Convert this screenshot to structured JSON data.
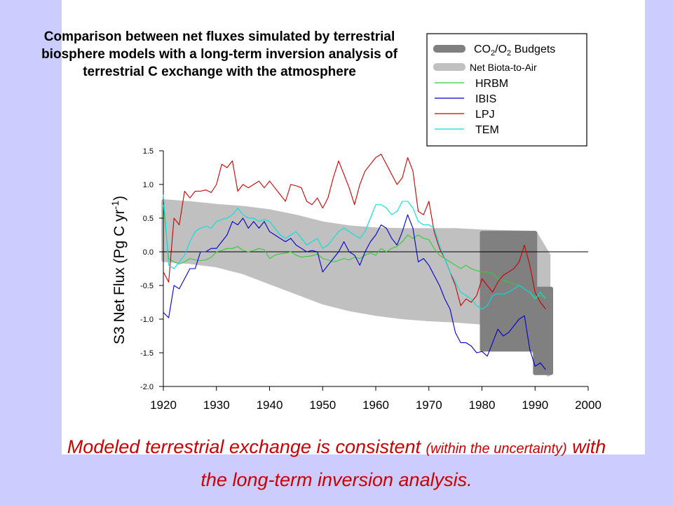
{
  "slide": {
    "title": "Comparison between net fluxes simulated by terrestrial biosphere models with a long-term inversion analysis of terrestrial C exchange with the atmosphere",
    "caption_part1": "Modeled terrestrial exchange is consistent ",
    "caption_part2": "(within the uncertainty)",
    "caption_part3": " with the long-term inversion analysis."
  },
  "colors": {
    "background": "#ccccff",
    "panel": "#ffffff",
    "caption": "#cc0000",
    "budgets_band": "#808080",
    "net_biota_band": "#c0c0c0",
    "HRBM": "#33cc33",
    "IBIS": "#0000cc",
    "LPJ": "#cc0000",
    "TEM": "#00e0e0"
  },
  "chart_data": {
    "type": "line",
    "title": "",
    "xlabel": "",
    "ylabel": "S3 Net Flux (Pg C yr-1)",
    "ylabel_parts": [
      "S3 Net Flux (Pg C yr",
      "-1",
      ")"
    ],
    "xlim": [
      1920,
      2000
    ],
    "ylim": [
      -2.0,
      1.5
    ],
    "x_ticks": [
      "1920",
      "1930",
      "1940",
      "1950",
      "1960",
      "1970",
      "1980",
      "1990",
      "2000"
    ],
    "y_ticks": [
      "1.5",
      "1.0",
      "0.5",
      "0.0",
      "-0.5",
      "-1.0",
      "-1.5",
      "-2.0"
    ],
    "zero_line": true,
    "legend": {
      "placement": "top-right",
      "entries": [
        {
          "label": "CO2/O2 Budgets",
          "label_parts": [
            "CO",
            "2",
            "/O",
            "2",
            " Budgets"
          ],
          "style": "band-dark"
        },
        {
          "label": "Net Biota-to-Air",
          "style": "band-light"
        },
        {
          "label": "HRBM",
          "style": "line"
        },
        {
          "label": "IBIS",
          "style": "line"
        },
        {
          "label": "LPJ",
          "style": "line"
        },
        {
          "label": "TEM",
          "style": "line"
        }
      ]
    },
    "bands": [
      {
        "name": "Net Biota-to-Air",
        "x": [
          1920,
          1925,
          1930,
          1935,
          1940,
          1945,
          1950,
          1955,
          1960,
          1965,
          1970,
          1975,
          1980,
          1985,
          1990,
          1992.5
        ],
        "upper": [
          0.75,
          0.72,
          0.68,
          0.65,
          0.6,
          0.52,
          0.42,
          0.36,
          0.33,
          0.32,
          0.32,
          0.32,
          0.3,
          0.29,
          0.28,
          -0.05
        ],
        "lower": [
          -0.12,
          -0.15,
          -0.2,
          -0.3,
          -0.45,
          -0.6,
          -0.75,
          -0.85,
          -0.92,
          -0.97,
          -1.0,
          -1.02,
          -1.05,
          -1.2,
          -1.5,
          -1.82
        ]
      },
      {
        "name": "CO2/O2 Budgets",
        "x": [
          1980,
          1990,
          1990,
          1993
        ],
        "upper": [
          0.28,
          0.28,
          -0.55,
          -0.55
        ],
        "lower": [
          -1.45,
          -1.45,
          -1.8,
          -1.8
        ]
      }
    ],
    "x": [
      1920,
      1921,
      1922,
      1923,
      1924,
      1925,
      1926,
      1927,
      1928,
      1929,
      1930,
      1931,
      1932,
      1933,
      1934,
      1935,
      1936,
      1937,
      1938,
      1939,
      1940,
      1941,
      1942,
      1943,
      1944,
      1945,
      1946,
      1947,
      1948,
      1949,
      1950,
      1951,
      1952,
      1953,
      1954,
      1955,
      1956,
      1957,
      1958,
      1959,
      1960,
      1961,
      1962,
      1963,
      1964,
      1965,
      1966,
      1967,
      1968,
      1969,
      1970,
      1971,
      1972,
      1973,
      1974,
      1975,
      1976,
      1977,
      1978,
      1979,
      1980,
      1981,
      1982,
      1983,
      1984,
      1985,
      1986,
      1987,
      1988,
      1989,
      1990,
      1991,
      1992
    ],
    "series": [
      {
        "name": "HRBM",
        "values": [
          0.7,
          -0.1,
          -0.15,
          -0.18,
          -0.15,
          -0.1,
          -0.12,
          -0.13,
          -0.12,
          -0.08,
          0.0,
          0.02,
          0.05,
          0.05,
          0.08,
          0.02,
          0.0,
          0.02,
          0.05,
          0.03,
          -0.1,
          -0.05,
          -0.03,
          -0.02,
          0.0,
          -0.05,
          -0.08,
          -0.07,
          -0.06,
          -0.03,
          -0.1,
          -0.12,
          -0.15,
          -0.13,
          -0.1,
          -0.12,
          -0.08,
          -0.1,
          -0.05,
          -0.02,
          -0.05,
          0.05,
          0.0,
          0.05,
          0.08,
          0.15,
          0.25,
          0.2,
          0.25,
          0.2,
          0.18,
          0.05,
          -0.05,
          -0.1,
          -0.15,
          -0.2,
          -0.25,
          -0.2,
          -0.25,
          -0.28,
          -0.3,
          -0.3,
          -0.32,
          -0.4,
          -0.42,
          -0.45,
          -0.48,
          -0.5,
          -0.55,
          -0.6,
          -0.68,
          -0.65,
          -0.68
        ]
      },
      {
        "name": "IBIS",
        "values": [
          -0.9,
          -0.98,
          -0.5,
          -0.55,
          -0.4,
          -0.25,
          -0.25,
          0.0,
          0.0,
          0.05,
          0.05,
          0.15,
          0.25,
          0.45,
          0.4,
          0.5,
          0.35,
          0.45,
          0.35,
          0.45,
          0.3,
          0.25,
          0.2,
          0.15,
          0.2,
          0.1,
          0.05,
          0.0,
          0.02,
          0.0,
          -0.3,
          -0.2,
          -0.1,
          0.0,
          0.15,
          0.0,
          -0.05,
          -0.2,
          0.0,
          0.15,
          0.25,
          0.4,
          0.35,
          0.2,
          0.1,
          0.3,
          0.55,
          0.35,
          -0.15,
          -0.1,
          -0.2,
          -0.35,
          -0.5,
          -0.7,
          -0.85,
          -1.2,
          -1.35,
          -1.35,
          -1.4,
          -1.5,
          -1.48,
          -1.55,
          -1.35,
          -1.15,
          -1.25,
          -1.2,
          -1.1,
          -1.0,
          -0.95,
          -1.45,
          -1.7,
          -1.65,
          -1.75
        ]
      },
      {
        "name": "LPJ",
        "values": [
          -0.3,
          -0.45,
          0.5,
          0.4,
          0.9,
          0.8,
          0.9,
          0.9,
          0.92,
          0.88,
          1.0,
          1.3,
          1.25,
          1.35,
          0.9,
          1.0,
          0.95,
          1.0,
          1.05,
          0.95,
          1.05,
          0.95,
          0.85,
          0.75,
          1.0,
          0.98,
          0.95,
          0.75,
          0.7,
          0.8,
          0.65,
          0.8,
          1.1,
          1.35,
          1.15,
          0.95,
          0.7,
          1.0,
          1.2,
          1.3,
          1.4,
          1.45,
          1.3,
          1.15,
          1.0,
          1.1,
          1.4,
          1.2,
          0.6,
          0.55,
          0.75,
          0.3,
          0.05,
          -0.1,
          -0.3,
          -0.5,
          -0.8,
          -0.7,
          -0.75,
          -0.65,
          -0.4,
          -0.5,
          -0.6,
          -0.45,
          -0.35,
          -0.3,
          -0.25,
          -0.15,
          0.1,
          -0.2,
          -0.6,
          -0.75,
          -0.85
        ]
      },
      {
        "name": "TEM",
        "values": [
          0.85,
          -0.2,
          -0.25,
          -0.15,
          -0.05,
          0.15,
          0.3,
          0.35,
          0.38,
          0.35,
          0.45,
          0.48,
          0.5,
          0.55,
          0.65,
          0.55,
          0.5,
          0.5,
          0.45,
          0.48,
          0.45,
          0.35,
          0.25,
          0.2,
          0.25,
          0.3,
          0.2,
          0.1,
          0.15,
          0.2,
          0.05,
          0.1,
          0.2,
          0.3,
          0.35,
          0.3,
          0.25,
          0.2,
          0.3,
          0.5,
          0.7,
          0.7,
          0.65,
          0.55,
          0.6,
          0.75,
          0.75,
          0.65,
          0.45,
          0.4,
          0.4,
          0.35,
          0.1,
          -0.1,
          -0.3,
          -0.45,
          -0.6,
          -0.65,
          -0.7,
          -0.8,
          -0.85,
          -0.8,
          -0.65,
          -0.62,
          -0.63,
          -0.6,
          -0.55,
          -0.5,
          -0.55,
          -0.6,
          -0.7,
          -0.6,
          -0.7
        ]
      }
    ]
  }
}
